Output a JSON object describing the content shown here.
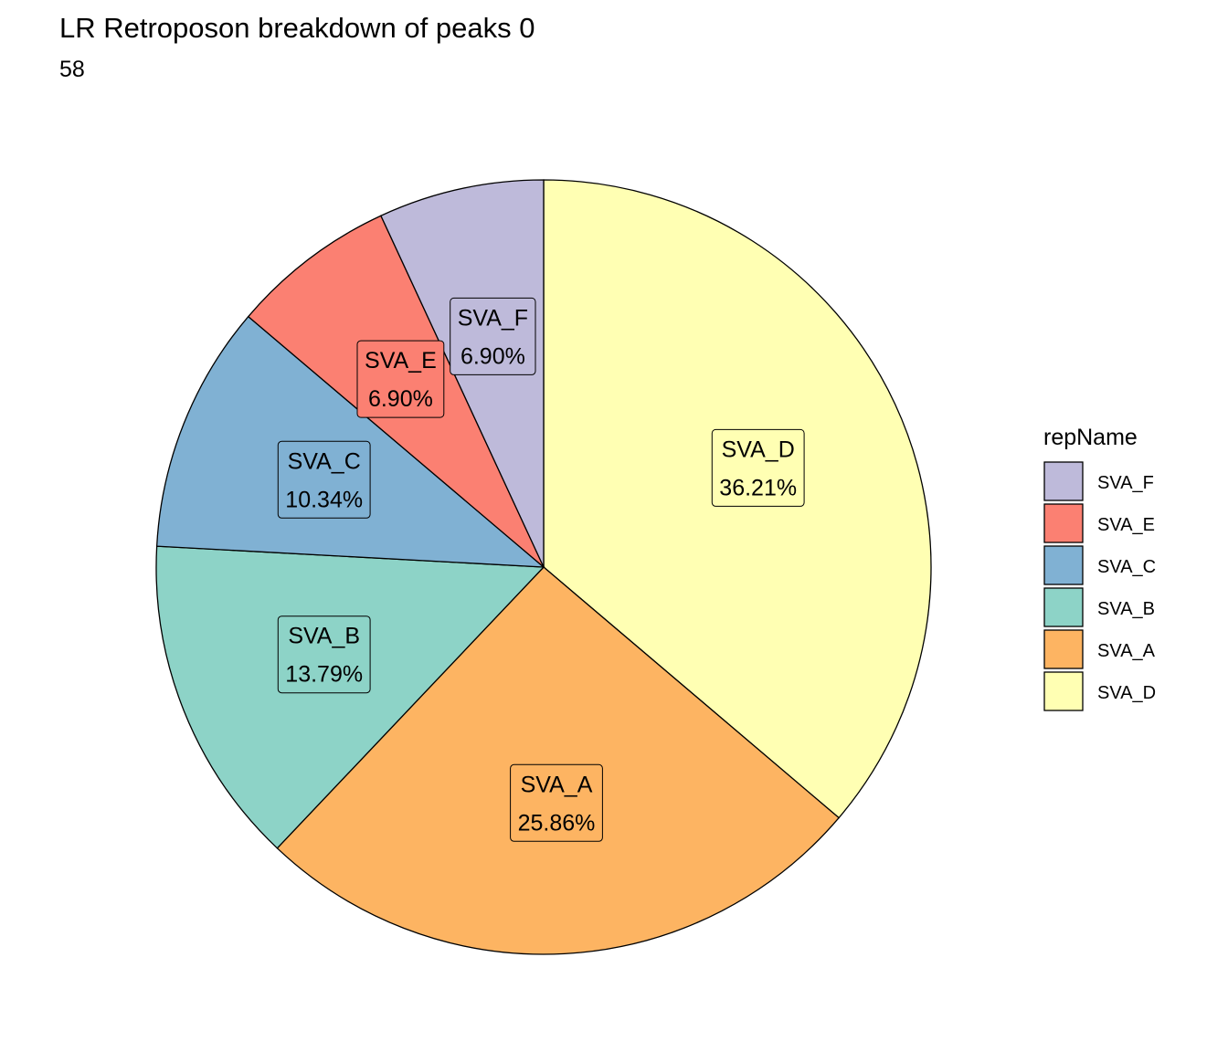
{
  "chart_data": {
    "type": "pie",
    "title": "LR Retroposon breakdown of peaks 0",
    "subtitle": "58",
    "legend": {
      "title": "repName",
      "placement": "right",
      "items": [
        "SVA_F",
        "SVA_E",
        "SVA_C",
        "SVA_B",
        "SVA_A",
        "SVA_D"
      ]
    },
    "slices": [
      {
        "name": "SVA_D",
        "value": 36.21,
        "label": "36.21%",
        "color": "#FFFFB3"
      },
      {
        "name": "SVA_A",
        "value": 25.86,
        "label": "25.86%",
        "color": "#FDB462"
      },
      {
        "name": "SVA_B",
        "value": 13.79,
        "label": "13.79%",
        "color": "#8DD3C7"
      },
      {
        "name": "SVA_C",
        "value": 10.34,
        "label": "10.34%",
        "color": "#80B1D3"
      },
      {
        "name": "SVA_E",
        "value": 6.9,
        "label": "6.90%",
        "color": "#FB8072"
      },
      {
        "name": "SVA_F",
        "value": 6.9,
        "label": "6.90%",
        "color": "#BEBADA"
      }
    ]
  }
}
